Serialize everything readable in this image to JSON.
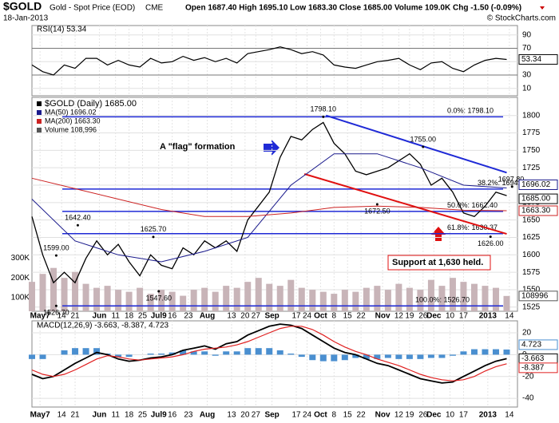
{
  "header": {
    "symbol": "$GOLD",
    "name": "Gold - Spot Price (EOD)",
    "exchange": "CME",
    "date": "18-Jan-2013",
    "quote": "Open 1687.40 High 1695.10 Low 1683.30 Close 1685.00 Volume 109.0K Chg -1.50 (-0.09%)",
    "credit": "© StockCharts.com"
  },
  "chart_data": [
    {
      "type": "line",
      "title": "RSI(14) 53.34",
      "ylim": [
        -1,
        104
      ],
      "yticks": [
        90,
        70,
        50,
        30,
        10
      ],
      "xlim": [
        0,
        180
      ],
      "x": [
        0,
        4,
        8,
        12,
        16,
        20,
        24,
        28,
        32,
        36,
        40,
        44,
        48,
        52,
        56,
        60,
        64,
        68,
        72,
        76,
        80,
        84,
        88,
        92,
        96,
        100,
        104,
        108,
        112,
        116,
        120,
        124,
        128,
        132,
        136,
        140,
        144,
        148,
        152,
        156,
        160,
        164,
        168,
        172,
        176
      ],
      "series": [
        {
          "name": "RSI(14)",
          "color": "#000000",
          "badge": "53.34",
          "values": [
            45,
            35,
            30,
            45,
            40,
            55,
            55,
            45,
            52,
            45,
            42,
            55,
            48,
            50,
            58,
            52,
            56,
            50,
            55,
            48,
            62,
            65,
            68,
            72,
            68,
            62,
            65,
            60,
            45,
            42,
            40,
            45,
            50,
            52,
            55,
            45,
            38,
            48,
            50,
            40,
            35,
            45,
            52,
            55,
            53.34
          ]
        }
      ]
    },
    {
      "type": "line",
      "title": "$GOLD (Daily) 1685.00",
      "ylim": [
        1519,
        1826
      ],
      "xlim": [
        0,
        180
      ],
      "yticks": [
        1800,
        1775,
        1750,
        1725,
        1700,
        1675,
        1650,
        1625,
        1600,
        1575,
        1550,
        1525
      ],
      "xticks": [
        {
          "value": 3,
          "label": "May7"
        },
        {
          "value": 11,
          "label": "14"
        },
        {
          "value": 16,
          "label": "21"
        },
        {
          "value": 25,
          "label": "Jun"
        },
        {
          "value": 31,
          "label": "11"
        },
        {
          "value": 36,
          "label": "18"
        },
        {
          "value": 41,
          "label": "25"
        },
        {
          "value": 47,
          "label": "Jul9"
        },
        {
          "value": 52,
          "label": "16"
        },
        {
          "value": 58,
          "label": "23"
        },
        {
          "value": 65,
          "label": "Aug"
        },
        {
          "value": 74,
          "label": "13"
        },
        {
          "value": 79,
          "label": "20"
        },
        {
          "value": 83,
          "label": "27"
        },
        {
          "value": 89,
          "label": "Sep"
        },
        {
          "value": 98,
          "label": "17"
        },
        {
          "value": 102,
          "label": "24"
        },
        {
          "value": 107,
          "label": "Oct"
        },
        {
          "value": 112,
          "label": "8"
        },
        {
          "value": 117,
          "label": "15"
        },
        {
          "value": 122,
          "label": "22"
        },
        {
          "value": 130,
          "label": "Nov"
        },
        {
          "value": 136,
          "label": "12"
        },
        {
          "value": 140,
          "label": "19"
        },
        {
          "value": 145,
          "label": "26"
        },
        {
          "value": 149,
          "label": "Dec"
        },
        {
          "value": 155,
          "label": "10"
        },
        {
          "value": 160,
          "label": "17"
        },
        {
          "value": 169,
          "label": "2013"
        },
        {
          "value": 177,
          "label": "14"
        }
      ],
      "grid": true,
      "x": [
        0,
        4,
        8,
        12,
        16,
        20,
        24,
        28,
        32,
        36,
        40,
        44,
        48,
        52,
        56,
        60,
        64,
        68,
        72,
        76,
        80,
        84,
        88,
        92,
        96,
        100,
        104,
        108,
        112,
        116,
        120,
        124,
        128,
        132,
        136,
        140,
        144,
        148,
        152,
        156,
        160,
        164,
        168,
        172,
        176
      ],
      "series": [
        {
          "name": "$GOLD (Daily) 1685.00",
          "color": "#000000",
          "badge": "1685.00",
          "values": [
            1655,
            1600,
            1560,
            1575,
            1560,
            1595,
            1620,
            1600,
            1615,
            1590,
            1570,
            1600,
            1585,
            1580,
            1610,
            1600,
            1620,
            1610,
            1620,
            1605,
            1650,
            1670,
            1690,
            1740,
            1770,
            1765,
            1780,
            1790,
            1760,
            1745,
            1720,
            1715,
            1720,
            1725,
            1735,
            1745,
            1730,
            1700,
            1710,
            1690,
            1660,
            1655,
            1670,
            1690,
            1685
          ]
        },
        {
          "name": "MA(50) 1696.02",
          "color": "#1a1a8c",
          "badge": "1696.02",
          "x": [
            0,
            16,
            32,
            48,
            64,
            80,
            96,
            112,
            128,
            144,
            160,
            176
          ],
          "values": [
            1680,
            1620,
            1600,
            1590,
            1605,
            1625,
            1700,
            1745,
            1745,
            1725,
            1700,
            1696.02
          ]
        },
        {
          "name": "MA(200) 1663.30",
          "color": "#cc2222",
          "badge": "1663.30",
          "x": [
            0,
            16,
            32,
            48,
            64,
            80,
            96,
            112,
            128,
            144,
            160,
            176
          ],
          "values": [
            1710,
            1695,
            1680,
            1665,
            1655,
            1655,
            1660,
            1668,
            1670,
            1668,
            1664,
            1663.3
          ]
        }
      ],
      "volume": {
        "name": "Volume 108,996",
        "color": "#c8b4b8",
        "badge": "108996",
        "ylim": [
          32000,
          1108000
        ],
        "yticks": [
          {
            "value": 300000,
            "label": "300K"
          },
          {
            "value": 200000,
            "label": "200K"
          },
          {
            "value": 100000,
            "label": "100K"
          }
        ],
        "values": [
          180000,
          220000,
          250000,
          200000,
          230000,
          170000,
          150000,
          160000,
          140000,
          130000,
          150000,
          120000,
          140000,
          130000,
          110000,
          140000,
          150000,
          130000,
          160000,
          150000,
          180000,
          200000,
          170000,
          160000,
          190000,
          150000,
          140000,
          130000,
          120000,
          140000,
          130000,
          150000,
          160000,
          140000,
          170000,
          150000,
          140000,
          190000,
          160000,
          200000,
          180000,
          170000,
          160000,
          150000,
          108996
        ]
      },
      "fib_levels": [
        {
          "value": 1798.1,
          "label": "0.0%: 1798.10"
        },
        {
          "value": 1694.42,
          "label": "38.2%: 1694.42"
        },
        {
          "value": 1662.4,
          "label": "50.0%: 1662.40"
        },
        {
          "value": 1630.37,
          "label": "61.8%: 1630.37"
        },
        {
          "value": 1526.7,
          "label": "100.0%: 1526.70"
        }
      ],
      "trendlines": [
        {
          "color": "#1f2ad6",
          "x": [
            109,
            176
          ],
          "values": [
            1800,
            1718
          ]
        },
        {
          "color": "#e01010",
          "x": [
            101,
            176
          ],
          "values": [
            1716,
            1630
          ]
        }
      ],
      "annotations": [
        {
          "x": 108,
          "value": 1798.1,
          "label": "1798.10"
        },
        {
          "x": 145,
          "value": 1755,
          "label": "1755.00"
        },
        {
          "x": 178,
          "value": 1697.8,
          "label": "1697.80"
        },
        {
          "x": 128,
          "value": 1672.5,
          "label": "1672.50"
        },
        {
          "x": 17,
          "value": 1642.4,
          "label": "1642.40"
        },
        {
          "x": 45,
          "value": 1625.7,
          "label": "1625.70"
        },
        {
          "x": 9,
          "value": 1599,
          "label": "1599.00"
        },
        {
          "x": 47,
          "value": 1547.6,
          "label": "1547.60"
        },
        {
          "x": 9,
          "value": 1526.7,
          "label": "1526.70"
        },
        {
          "x": 170,
          "value": 1626,
          "label": "1626.00"
        }
      ],
      "notes": [
        "A \"flag\" formation",
        "Support at 1,630 held."
      ]
    },
    {
      "type": "line",
      "title": "MACD(12,26,9) -3.663, -8.387, 4.723",
      "ylim": [
        -48,
        31
      ],
      "xlim": [
        0,
        180
      ],
      "yticks": [
        20,
        0,
        -20,
        -40
      ],
      "x": [
        0,
        4,
        8,
        12,
        16,
        20,
        24,
        28,
        32,
        36,
        40,
        44,
        48,
        52,
        56,
        60,
        64,
        68,
        72,
        76,
        80,
        84,
        88,
        92,
        96,
        100,
        104,
        108,
        112,
        116,
        120,
        124,
        128,
        132,
        136,
        140,
        144,
        148,
        152,
        156,
        160,
        164,
        168,
        172,
        176
      ],
      "series": [
        {
          "name": "MACD",
          "color": "#000000",
          "badge": "-3.663",
          "values": [
            -18,
            -22,
            -20,
            -14,
            -8,
            -3,
            2,
            0,
            -4,
            -6,
            -5,
            -3,
            -2,
            0,
            4,
            6,
            8,
            5,
            10,
            12,
            18,
            22,
            26,
            28,
            27,
            24,
            18,
            12,
            6,
            2,
            0,
            -4,
            -8,
            -10,
            -14,
            -18,
            -22,
            -24,
            -26,
            -25,
            -20,
            -15,
            -10,
            -6,
            -3.663
          ]
        },
        {
          "name": "Signal",
          "color": "#e02020",
          "badge": "-8.387",
          "values": [
            -14,
            -18,
            -20,
            -18,
            -14,
            -9,
            -4,
            -1,
            -2,
            -4,
            -5,
            -4,
            -3,
            -2,
            0,
            3,
            5,
            6,
            7,
            9,
            12,
            16,
            20,
            24,
            26,
            26,
            23,
            18,
            12,
            7,
            3,
            0,
            -4,
            -7,
            -10,
            -14,
            -18,
            -21,
            -23,
            -24,
            -23,
            -20,
            -15,
            -11,
            -8.387
          ]
        },
        {
          "name": "Histogram",
          "color": "#4a8fd0",
          "badge": "4.723",
          "values": [
            -4,
            -4,
            0,
            4,
            6,
            6,
            6,
            1,
            -2,
            -2,
            0,
            1,
            1,
            2,
            4,
            3,
            3,
            -1,
            3,
            3,
            6,
            6,
            6,
            4,
            1,
            -2,
            -5,
            -6,
            -6,
            -5,
            -3,
            -4,
            -4,
            -3,
            -4,
            -4,
            -4,
            -3,
            -3,
            -1,
            3,
            5,
            5,
            5,
            4.723
          ]
        }
      ]
    }
  ]
}
